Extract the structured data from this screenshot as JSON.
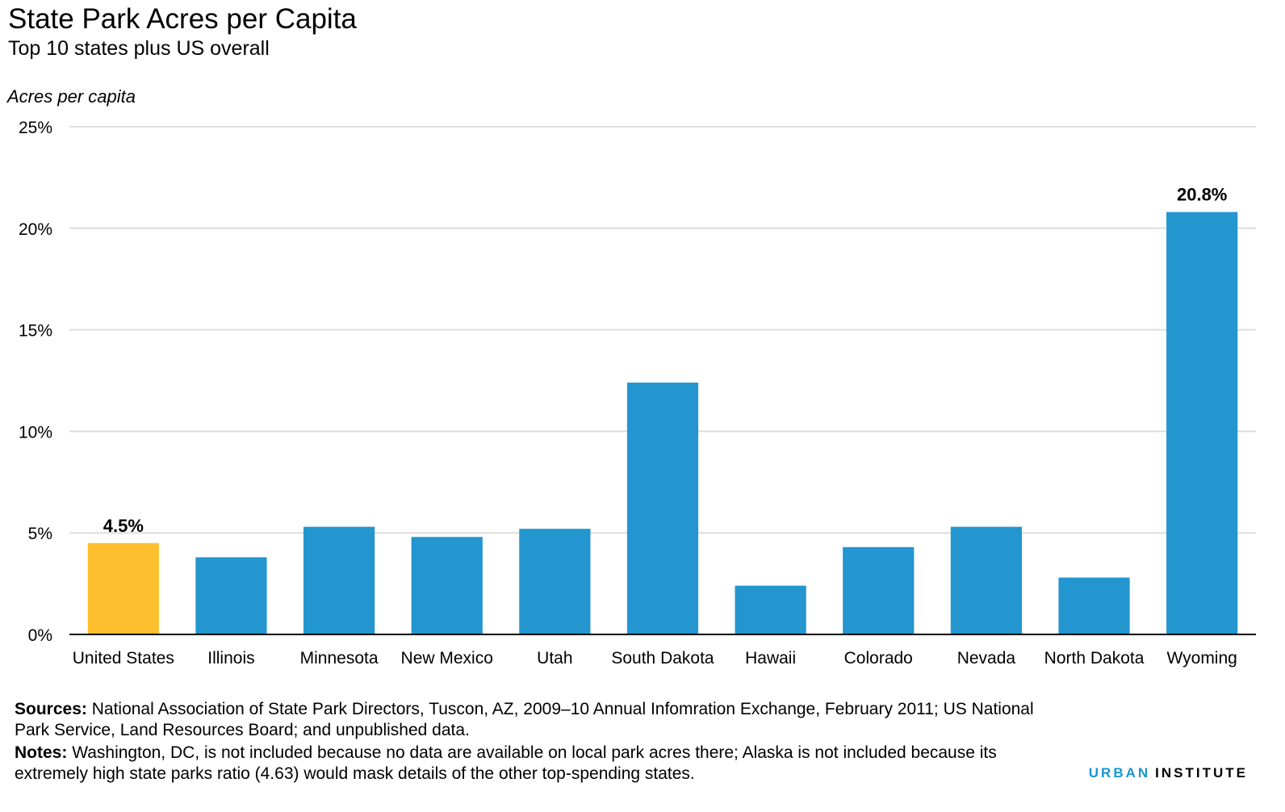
{
  "header": {
    "title": "State Park Acres per Capita",
    "subtitle": "Top 10 states plus US overall"
  },
  "chart_data": {
    "type": "bar",
    "ylabel": "Acres per capita",
    "categories": [
      "United States",
      "Illinois",
      "Minnesota",
      "New Mexico",
      "Utah",
      "South Dakota",
      "Hawaii",
      "Colorado",
      "Nevada",
      "North Dakota",
      "Wyoming"
    ],
    "values": [
      4.5,
      3.8,
      5.3,
      4.8,
      5.2,
      12.4,
      2.4,
      4.3,
      5.3,
      2.8,
      20.8
    ],
    "ylim": [
      0,
      25
    ],
    "yticks": [
      0,
      5,
      10,
      15,
      20,
      25
    ],
    "ytick_labels": [
      "0%",
      "5%",
      "10%",
      "15%",
      "20%",
      "25%"
    ],
    "data_labels": [
      {
        "category": "United States",
        "text": "4.5%"
      },
      {
        "category": "Wyoming",
        "text": "20.8%"
      }
    ],
    "colors": {
      "highlight": "#fdbf2d",
      "bar": "#2396cf",
      "grid": "#dedede",
      "axis": "#000000"
    },
    "highlight_category": "United States",
    "grid": true
  },
  "footer": {
    "sources_label": "Sources:",
    "sources_text": "National Association of State Park Directors, Tuscon, AZ, 2009–10 Annual Infomration Exchange, February 2011; US National Park Service, Land Resources Board; and unpublished data.",
    "notes_label": "Notes:",
    "notes_text": "Washington, DC, is not included because no data are available on local park acres there; Alaska is not included because its extremely high state parks ratio (4.63) would mask details of the other top-spending states.",
    "brand_primary": "URBAN",
    "brand_secondary": "INSTITUTE"
  }
}
